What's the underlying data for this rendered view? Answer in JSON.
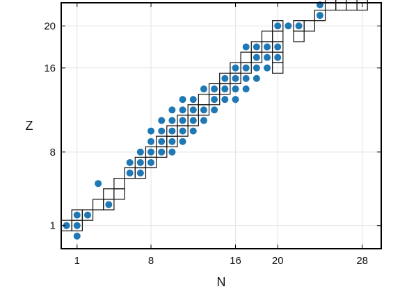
{
  "chart_data": {
    "type": "scatter",
    "xlabel": "N",
    "ylabel": "Z",
    "xlim": [
      -0.5,
      29.8
    ],
    "ylim": [
      -1.2,
      22.2
    ],
    "xticks": [
      1,
      8,
      16,
      20,
      28
    ],
    "yticks": [
      1,
      8,
      16,
      20
    ],
    "grid": true,
    "colors": {
      "dot": "#1f77b4",
      "box": "#111111",
      "grid": "#e3e3e3"
    },
    "series": [
      {
        "marker": "filled-circle",
        "points": [
          [
            0,
            1
          ],
          [
            1,
            1
          ],
          [
            1,
            2
          ],
          [
            1,
            0
          ],
          [
            2,
            2
          ],
          [
            3,
            5
          ],
          [
            4,
            3
          ],
          [
            6,
            6
          ],
          [
            7,
            6
          ],
          [
            6,
            7
          ],
          [
            7,
            7
          ],
          [
            7,
            8
          ],
          [
            8,
            7
          ],
          [
            8,
            8
          ],
          [
            8,
            9
          ],
          [
            8,
            10
          ],
          [
            9,
            8
          ],
          [
            9,
            9
          ],
          [
            9,
            10
          ],
          [
            9,
            11
          ],
          [
            10,
            8
          ],
          [
            10,
            9
          ],
          [
            10,
            10
          ],
          [
            10,
            11
          ],
          [
            10,
            12
          ],
          [
            11,
            9
          ],
          [
            11,
            10
          ],
          [
            11,
            11
          ],
          [
            11,
            12
          ],
          [
            11,
            13
          ],
          [
            12,
            10
          ],
          [
            12,
            11
          ],
          [
            12,
            12
          ],
          [
            12,
            13
          ],
          [
            13,
            11
          ],
          [
            13,
            12
          ],
          [
            13,
            14
          ],
          [
            14,
            12
          ],
          [
            14,
            13
          ],
          [
            14,
            14
          ],
          [
            15,
            13
          ],
          [
            15,
            14
          ],
          [
            15,
            15
          ],
          [
            16,
            13
          ],
          [
            16,
            14
          ],
          [
            16,
            15
          ],
          [
            16,
            16
          ],
          [
            17,
            14
          ],
          [
            17,
            15
          ],
          [
            17,
            16
          ],
          [
            17,
            18
          ],
          [
            18,
            15
          ],
          [
            18,
            16
          ],
          [
            18,
            17
          ],
          [
            18,
            18
          ],
          [
            19,
            16
          ],
          [
            19,
            17
          ],
          [
            19,
            18
          ],
          [
            20,
            17
          ],
          [
            20,
            18
          ],
          [
            20,
            20
          ],
          [
            21,
            20
          ],
          [
            22,
            20
          ],
          [
            24,
            22
          ],
          [
            24,
            21
          ]
        ]
      },
      {
        "marker": "open-square",
        "points": [
          [
            0,
            1
          ],
          [
            1,
            1
          ],
          [
            1,
            2
          ],
          [
            2,
            2
          ],
          [
            3,
            3
          ],
          [
            4,
            3
          ],
          [
            4,
            4
          ],
          [
            5,
            4
          ],
          [
            5,
            5
          ],
          [
            6,
            6
          ],
          [
            7,
            6
          ],
          [
            7,
            7
          ],
          [
            8,
            7
          ],
          [
            8,
            8
          ],
          [
            9,
            8
          ],
          [
            9,
            9
          ],
          [
            10,
            9
          ],
          [
            10,
            10
          ],
          [
            11,
            10
          ],
          [
            11,
            11
          ],
          [
            12,
            11
          ],
          [
            12,
            12
          ],
          [
            13,
            12
          ],
          [
            13,
            13
          ],
          [
            14,
            13
          ],
          [
            14,
            14
          ],
          [
            15,
            14
          ],
          [
            15,
            15
          ],
          [
            16,
            15
          ],
          [
            16,
            16
          ],
          [
            17,
            16
          ],
          [
            17,
            17
          ],
          [
            18,
            17
          ],
          [
            18,
            18
          ],
          [
            19,
            18
          ],
          [
            19,
            19
          ],
          [
            20,
            16
          ],
          [
            20,
            17
          ],
          [
            20,
            18
          ],
          [
            20,
            19
          ],
          [
            20,
            20
          ],
          [
            22,
            19
          ],
          [
            22,
            20
          ],
          [
            23,
            20
          ],
          [
            24,
            21
          ],
          [
            25,
            22
          ],
          [
            26,
            22
          ],
          [
            27,
            22
          ],
          [
            28,
            22
          ]
        ]
      }
    ]
  }
}
